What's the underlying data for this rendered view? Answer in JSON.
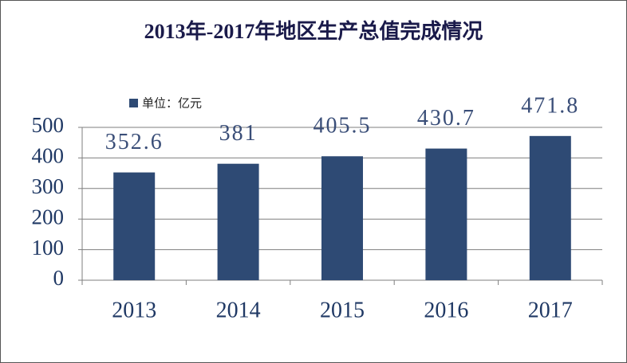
{
  "chart_data": {
    "type": "bar",
    "title": "2013年-2017年地区生产总值完成情况",
    "categories": [
      "2013",
      "2014",
      "2015",
      "2016",
      "2017"
    ],
    "series": [
      {
        "name": "单位：亿元",
        "color": "#2e4a74",
        "values": [
          352.6,
          381,
          405.5,
          430.7,
          471.8
        ]
      }
    ],
    "ylim": [
      0,
      500
    ],
    "yticks": [
      0,
      100,
      200,
      300,
      400,
      500
    ],
    "grid": true
  }
}
